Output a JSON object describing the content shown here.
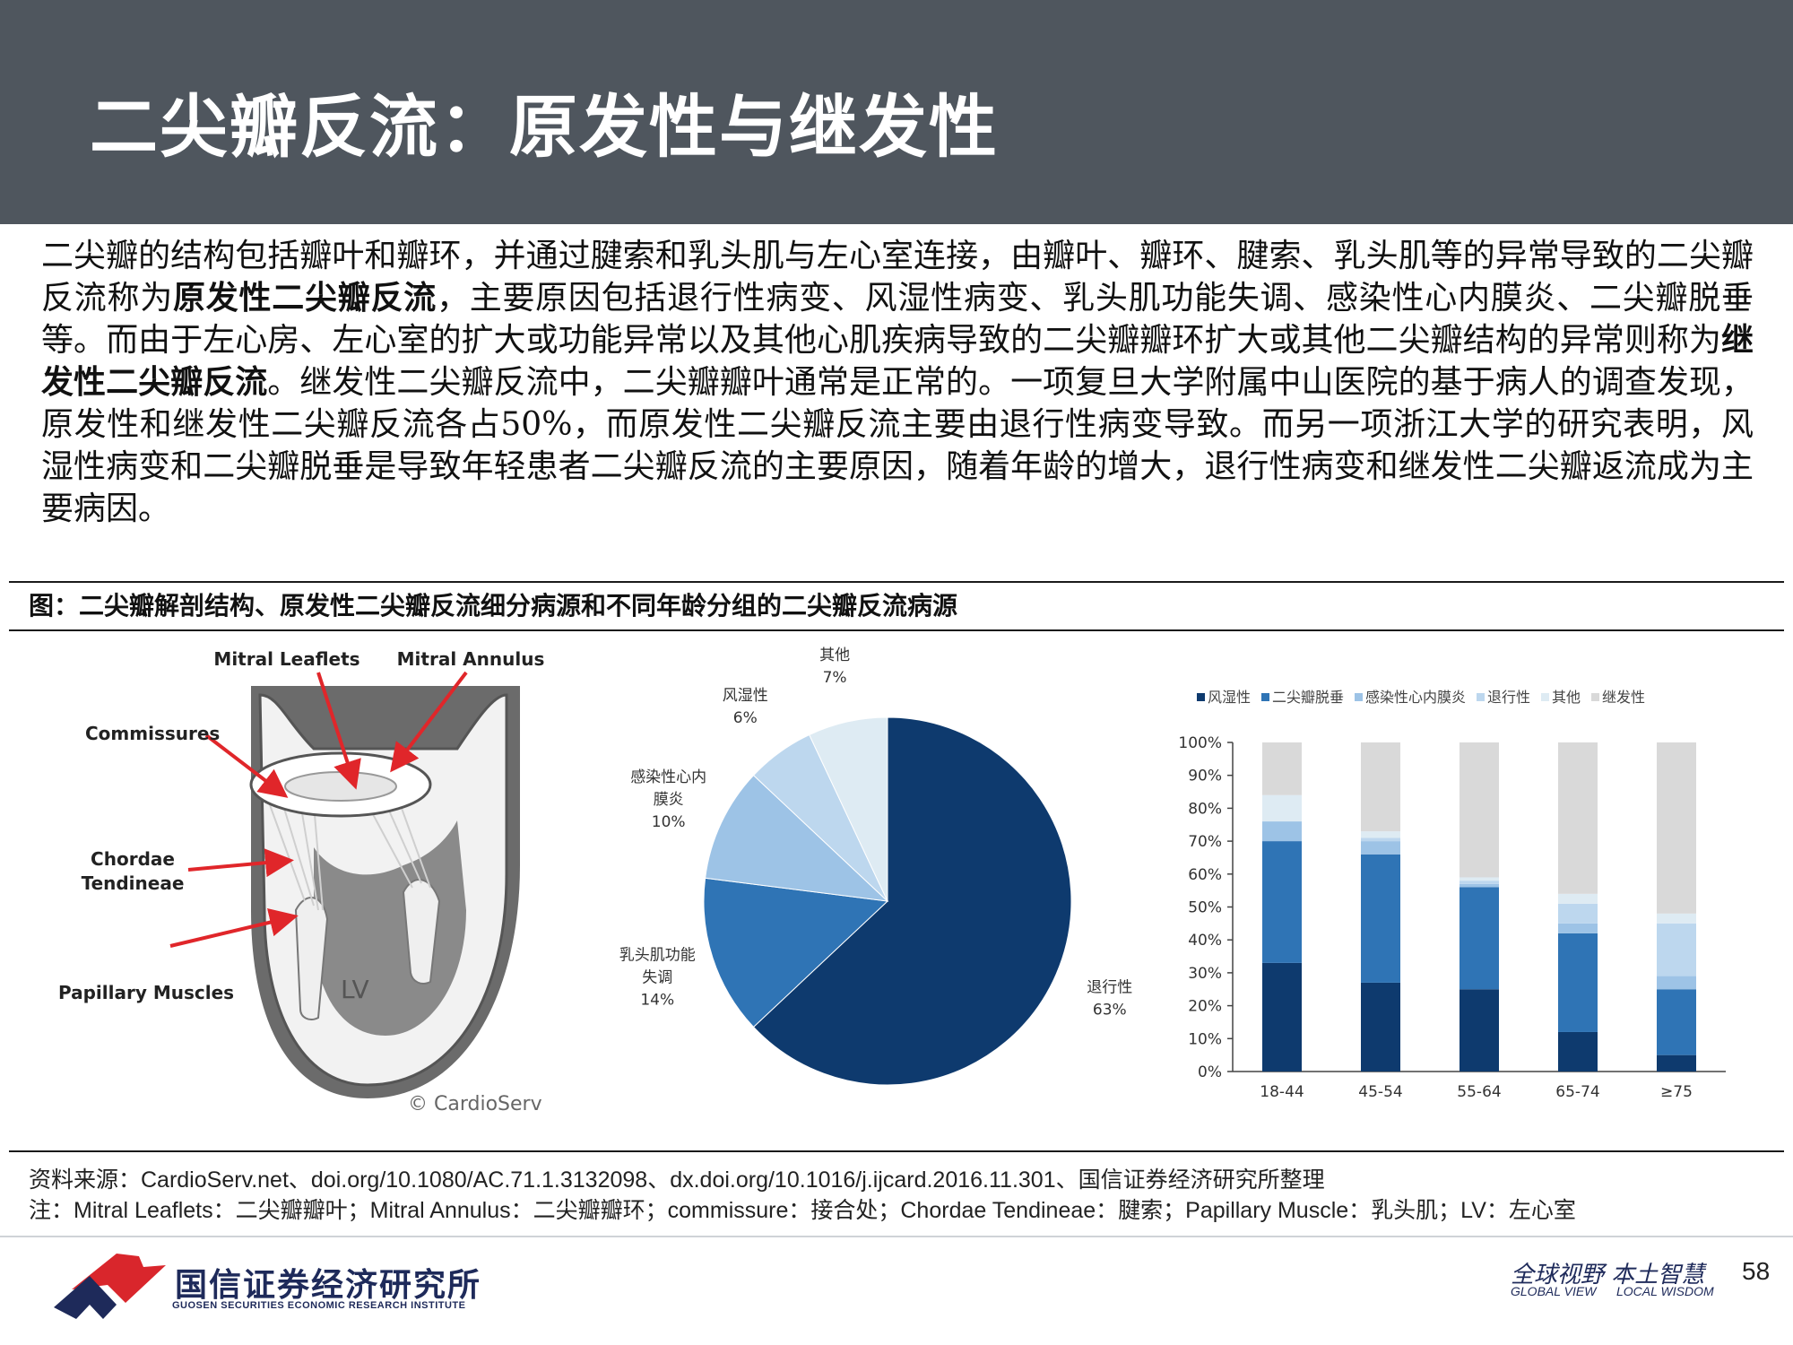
{
  "header": {
    "title": "二尖瓣反流：原发性与继发性"
  },
  "body": {
    "part1": "二尖瓣的结构包括瓣叶和瓣环，并通过腱索和乳头肌与左心室连接，由瓣叶、瓣环、腱索、乳头肌等的异常导致的二尖瓣反流称为",
    "bold1": "原发性二尖瓣反流",
    "part2": "，主要原因包括退行性病变、风湿性病变、乳头肌功能失调、感染性心内膜炎、二尖瓣脱垂等。而由于左心房、左心室的扩大或功能异常以及其他心肌疾病导致的二尖瓣瓣环扩大或其他二尖瓣结构的异常则称为",
    "bold2": "继发性二尖瓣反流",
    "part3": "。继发性二尖瓣反流中，二尖瓣瓣叶通常是正常的。一项复旦大学附属中山医院的基于病人的调查发现，原发性和继发性二尖瓣反流各占50%，而原发性二尖瓣反流主要由退行性病变导致。而另一项浙江大学的研究表明，风湿性病变和二尖瓣脱垂是导致年轻患者二尖瓣反流的主要原因，随着年龄的增大，退行性病变和继发性二尖瓣返流成为主要病因。"
  },
  "figure": {
    "title": "图：二尖瓣解剖结构、原发性二尖瓣反流细分病源和不同年龄分组的二尖瓣反流病源",
    "source": "资料来源：CardioServ.net、doi.org/10.1080/AC.71.1.3132098、dx.doi.org/10.1016/j.ijcard.2016.11.301、国信证券经济研究所整理",
    "note": "注：Mitral Leaflets：二尖瓣瓣叶；Mitral Annulus：二尖瓣瓣环；commissure：接合处；Chordae Tendineae：腱索；Papillary Muscle：乳头肌；LV：左心室"
  },
  "anatomy": {
    "labels": {
      "leaflets": "Mitral Leaflets",
      "annulus": "Mitral Annulus",
      "commissures": "Commissures",
      "chordae1": "Chordae",
      "chordae2": "Tendineae",
      "papillary": "Papillary Muscles",
      "lv": "LV",
      "copyright": "© CardioServ"
    },
    "colors": {
      "arrow": "#e0262a",
      "tissue": "#f2f2f2",
      "cavity": "#8a8a8a"
    }
  },
  "chart_data": [
    {
      "type": "pie",
      "title": "",
      "slices": [
        {
          "label": "退行性",
          "value": 63,
          "display": "63%",
          "color": "#0e3a6e"
        },
        {
          "label": "乳头肌功能失调",
          "label_lines": [
            "乳头肌功能",
            "失调"
          ],
          "value": 14,
          "display": "14%",
          "color": "#2f74b5"
        },
        {
          "label": "感染性心内膜炎",
          "label_lines": [
            "感染性心内",
            "膜炎"
          ],
          "value": 10,
          "display": "10%",
          "color": "#9dc3e6"
        },
        {
          "label": "风湿性",
          "value": 6,
          "display": "6%",
          "color": "#bdd7ee"
        },
        {
          "label": "其他",
          "value": 7,
          "display": "7%",
          "color": "#deebf3"
        }
      ]
    },
    {
      "type": "bar",
      "stacked": true,
      "title": "",
      "categories": [
        "18-44",
        "45-54",
        "55-64",
        "65-74",
        "≥75"
      ],
      "ylim": [
        0,
        100
      ],
      "yticks": [
        "0%",
        "10%",
        "20%",
        "30%",
        "40%",
        "50%",
        "60%",
        "70%",
        "80%",
        "90%",
        "100%"
      ],
      "legend_position": "top",
      "series": [
        {
          "name": "风湿性",
          "color": "#0e3a6e",
          "values": [
            33,
            27,
            25,
            12,
            5
          ]
        },
        {
          "name": "二尖瓣脱垂",
          "color": "#2f74b5",
          "values": [
            37,
            39,
            31,
            30,
            20
          ]
        },
        {
          "name": "感染性心内膜炎",
          "color": "#9dc3e6",
          "values": [
            6,
            4,
            1,
            3,
            4
          ]
        },
        {
          "name": "退行性",
          "color": "#bdd7ee",
          "values": [
            0,
            1,
            1,
            6,
            16
          ]
        },
        {
          "name": "其他",
          "color": "#deebf3",
          "values": [
            8,
            2,
            1,
            3,
            3
          ]
        },
        {
          "name": "继发性",
          "color": "#d9d9d9",
          "values": [
            16,
            27,
            41,
            46,
            52
          ]
        }
      ]
    }
  ],
  "footer": {
    "company_cn": "国信证券经济研究所",
    "company_en": "GUOSEN SECURITIES ECONOMIC RESEARCH INSTITUTE",
    "slogan": "全球视野 本土智慧",
    "slogan_en1": "GLOBAL VIEW",
    "slogan_en2": "LOCAL WISDOM",
    "page_number": "58",
    "logo_colors": {
      "red": "#d9262c",
      "navy": "#1e2a5a"
    }
  }
}
